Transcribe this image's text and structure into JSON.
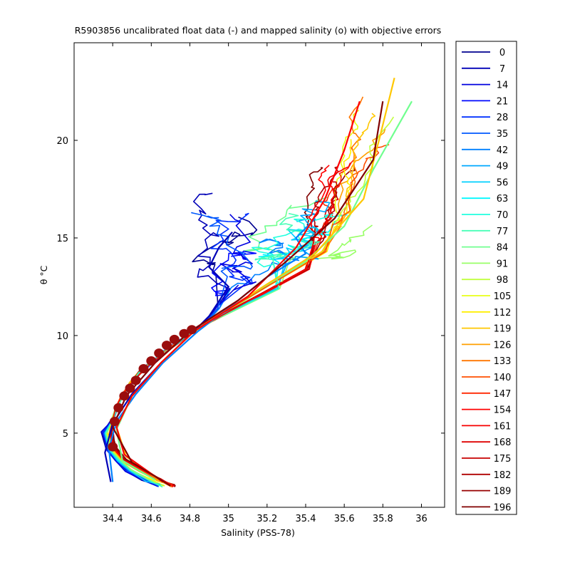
{
  "chart_data": {
    "type": "line",
    "title": "R5903856 uncalibrated float data (-) and mapped salinity (o) with objective errors",
    "xlabel": "Salinity (PSS-78)",
    "ylabel": "θ °C",
    "xlim": [
      34.2,
      36.12
    ],
    "ylim": [
      1.2,
      25
    ],
    "xticks": [
      34.4,
      34.6,
      34.8,
      35,
      35.2,
      35.4,
      35.6,
      35.8,
      36
    ],
    "xtick_labels": [
      "34.4",
      "34.6",
      "34.8",
      "35",
      "35.2",
      "35.4",
      "35.6",
      "35.8",
      "36"
    ],
    "yticks": [
      5,
      10,
      15,
      20
    ],
    "ytick_labels": [
      "5",
      "10",
      "15",
      "20"
    ],
    "grid": false,
    "legend_position": "right",
    "colormap": "jet",
    "legend_entries": [
      "0",
      "7",
      "14",
      "21",
      "28",
      "35",
      "42",
      "49",
      "56",
      "63",
      "70",
      "77",
      "84",
      "91",
      "98",
      "105",
      "112",
      "119",
      "126",
      "133",
      "140",
      "147",
      "154",
      "161",
      "168",
      "175",
      "182",
      "189",
      "196"
    ],
    "legend_colors": [
      "#00008f",
      "#0000b7",
      "#0000df",
      "#0008ff",
      "#0030ff",
      "#0058ff",
      "#0080ff",
      "#00a8ff",
      "#00d0ff",
      "#00f8ff",
      "#20ffdf",
      "#48ffb7",
      "#70ff8f",
      "#98ff67",
      "#c0ff3f",
      "#e8ff17",
      "#ffef00",
      "#ffc700",
      "#ff9f00",
      "#ff7700",
      "#ff4f00",
      "#ff2700",
      "#ff0000",
      "#f70000",
      "#df0000",
      "#c70000",
      "#af0000",
      "#970000",
      "#800000"
    ],
    "deep_water_mass_tail": {
      "x": [
        34.7,
        34.63,
        34.54,
        34.46,
        34.41,
        34.39,
        34.4,
        34.42,
        34.45,
        34.49,
        34.54,
        34.6,
        34.66,
        34.73,
        34.8,
        34.88
      ],
      "y": [
        2.3,
        2.6,
        3.1,
        3.6,
        4.2,
        5.0,
        5.7,
        6.3,
        6.9,
        7.5,
        8.1,
        8.6,
        9.1,
        9.6,
        10.1,
        10.6
      ]
    },
    "mapped_salinity_points": {
      "x": [
        34.4,
        34.41,
        34.43,
        34.46,
        34.49,
        34.52,
        34.56,
        34.6,
        34.64,
        34.68,
        34.72,
        34.77,
        34.81
      ],
      "y": [
        4.3,
        5.6,
        6.3,
        6.9,
        7.3,
        7.7,
        8.3,
        8.7,
        9.1,
        9.5,
        9.8,
        10.1,
        10.3
      ]
    },
    "representative_profiles": [
      {
        "name": "7",
        "x": [
          34.39,
          34.36,
          34.4,
          34.5,
          34.65,
          34.82,
          34.9,
          35.0,
          34.9,
          34.95,
          35.02
        ],
        "y": [
          2.5,
          4.0,
          5.5,
          7.0,
          8.6,
          10.2,
          11.0,
          12.5,
          13.5,
          14.5,
          15.3
        ]
      },
      {
        "name": "42",
        "x": [
          34.4,
          34.38,
          34.42,
          34.52,
          34.66,
          34.84,
          35.05,
          35.2,
          35.4,
          35.35,
          35.45
        ],
        "y": [
          2.5,
          4.2,
          5.6,
          7.0,
          8.6,
          10.2,
          11.8,
          13.0,
          14.2,
          15.0,
          16.0
        ]
      },
      {
        "name": "84",
        "x": [
          34.62,
          34.45,
          34.42,
          34.5,
          34.65,
          34.82,
          35.1,
          35.4,
          35.6,
          35.75,
          35.95
        ],
        "y": [
          2.6,
          3.6,
          5.2,
          6.9,
          8.6,
          10.2,
          12.0,
          13.8,
          15.6,
          18.5,
          22.0
        ]
      },
      {
        "name": "119",
        "x": [
          34.64,
          34.47,
          34.42,
          34.5,
          34.65,
          34.82,
          35.1,
          35.45,
          35.7,
          35.78,
          35.86
        ],
        "y": [
          2.6,
          3.8,
          5.3,
          6.9,
          8.6,
          10.2,
          12.0,
          14.2,
          17.0,
          20.0,
          23.2
        ]
      },
      {
        "name": "154",
        "x": [
          34.66,
          34.46,
          34.42,
          34.5,
          34.65,
          34.82,
          35.1,
          35.35,
          35.5,
          35.6,
          35.68
        ],
        "y": [
          2.5,
          3.9,
          5.3,
          6.9,
          8.6,
          10.2,
          12.0,
          14.5,
          17.0,
          19.5,
          22.0
        ]
      },
      {
        "name": "196",
        "x": [
          34.7,
          34.5,
          34.4,
          34.47,
          34.62,
          34.8,
          35.05,
          35.3,
          35.55,
          35.75,
          35.8
        ],
        "y": [
          2.3,
          3.5,
          5.3,
          6.9,
          8.6,
          10.2,
          11.8,
          13.8,
          16.0,
          19.0,
          22.0
        ]
      }
    ]
  }
}
